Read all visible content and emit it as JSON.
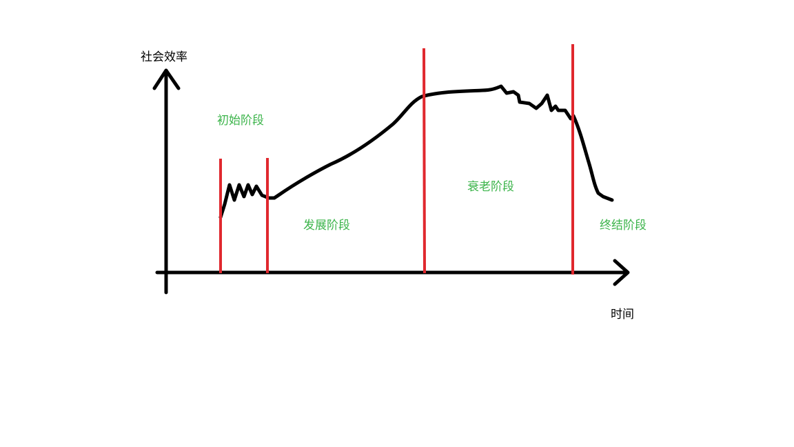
{
  "diagram": {
    "y_axis_label": "社会效率",
    "x_axis_label": "时间",
    "stages": [
      {
        "id": "initial",
        "label": "初始阶段"
      },
      {
        "id": "development",
        "label": "发展阶段"
      },
      {
        "id": "aging",
        "label": "衰老阶段"
      },
      {
        "id": "final",
        "label": "终结阶段"
      }
    ],
    "colors": {
      "axis": "#000000",
      "curve": "#000000",
      "divider": "#e0282e",
      "stage_text": "#3cb44b",
      "background": "#ffffff"
    }
  }
}
